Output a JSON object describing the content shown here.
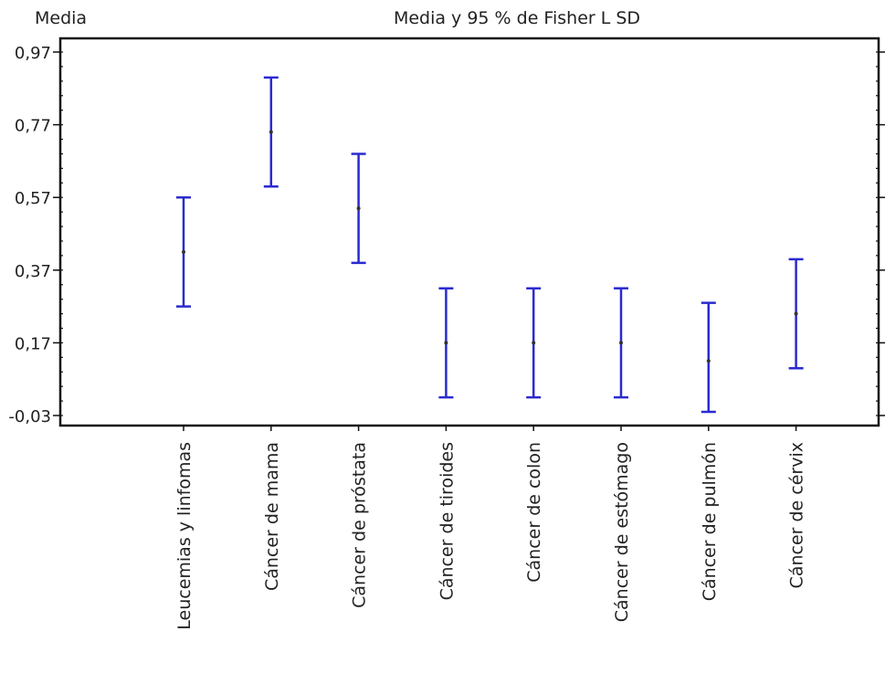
{
  "chart_data": {
    "type": "errorbar",
    "title": "Media y 95 % de Fisher L SD",
    "ylabel": "Media",
    "xlabel": "",
    "ylim": [
      -0.04,
      1.0
    ],
    "y_ticks": [
      -0.03,
      0.17,
      0.37,
      0.57,
      0.77,
      0.97
    ],
    "y_tick_labels": [
      "-0,03",
      "0,17",
      "0,37",
      "0,57",
      "0,77",
      "0,97"
    ],
    "categories": [
      "Leucemias y linfomas",
      "Cáncer de mama",
      "Cáncer de próstata",
      "Cáncer de tiroides",
      "Cáncer de colon",
      "Cáncer de estómago",
      "Cáncer de pulmón",
      "Cáncer de cérvix"
    ],
    "means": [
      0.42,
      0.75,
      0.54,
      0.17,
      0.17,
      0.17,
      0.12,
      0.25
    ],
    "lower": [
      0.27,
      0.6,
      0.39,
      0.02,
      0.02,
      0.02,
      -0.02,
      0.1
    ],
    "upper": [
      0.57,
      0.9,
      0.69,
      0.32,
      0.32,
      0.32,
      0.28,
      0.4
    ],
    "grid": false,
    "colors": {
      "interval": "#2a2ad0",
      "axis": "#111111",
      "text": "#222222"
    }
  }
}
